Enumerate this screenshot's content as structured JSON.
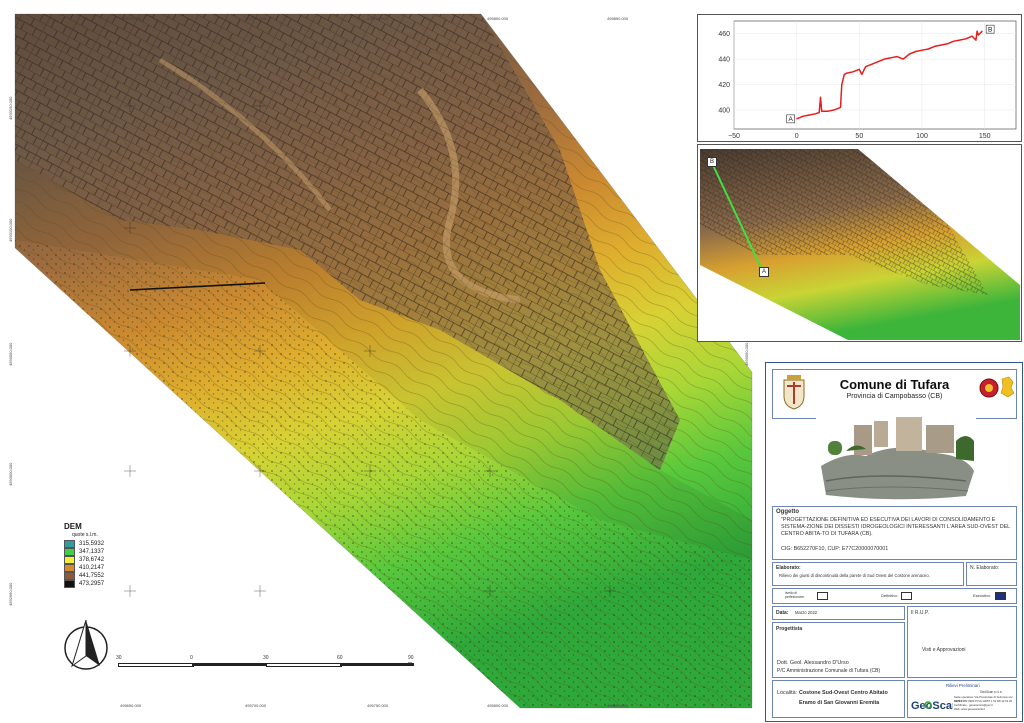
{
  "map": {
    "coords_top": [
      "495650.000",
      "495700.000",
      "495750.000",
      "495800.000",
      "495850.000"
    ],
    "coords_bottom": [
      "495650.000",
      "495700.000",
      "495750.000",
      "495800.000",
      "495850.000"
    ],
    "coords_left": [
      "4593150.000",
      "4593100.000",
      "4593050.000",
      "4593000.000",
      "4592950.000"
    ],
    "coords_right_inner": [
      "4593050.000"
    ],
    "scale_labels": [
      "30",
      "0",
      "30",
      "60",
      "90 m"
    ]
  },
  "legend": {
    "title": "DEM",
    "subtitle": "quote s.l.m.",
    "items": [
      {
        "label": "315,5932",
        "color": "#2f9e9e"
      },
      {
        "label": "347,1337",
        "color": "#3fd13f"
      },
      {
        "label": "378,6742",
        "color": "#f2ee3a"
      },
      {
        "label": "410,2147",
        "color": "#d98a2c"
      },
      {
        "label": "441,7552",
        "color": "#8a5a3a"
      },
      {
        "label": "473,2957",
        "color": "#111111"
      }
    ]
  },
  "profile": {
    "y_ticks": [
      "460",
      "440",
      "420",
      "400"
    ],
    "x_ticks": [
      "−50",
      "0",
      "50",
      "100",
      "150"
    ],
    "start_label": "A",
    "end_label": "B"
  },
  "chart_data": {
    "type": "line",
    "title": "",
    "xlabel": "",
    "ylabel": "",
    "xlim": [
      -50,
      175
    ],
    "ylim": [
      385,
      470
    ],
    "series": [
      {
        "x": [
          0,
          5,
          10,
          15,
          18,
          19,
          20,
          22,
          25,
          30,
          35,
          36,
          38,
          40,
          45,
          50,
          52,
          55,
          60,
          65,
          70,
          75,
          80,
          85,
          90,
          95,
          100,
          105,
          110,
          115,
          120,
          125,
          130,
          135,
          140,
          143,
          144,
          145,
          148
        ],
        "y": [
          393,
          395,
          396,
          397,
          398,
          410,
          399,
          399,
          399,
          400,
          402,
          420,
          428,
          429,
          430,
          432,
          428,
          434,
          436,
          438,
          440,
          441,
          442,
          440,
          444,
          446,
          447,
          448,
          450,
          451,
          452,
          454,
          455,
          456,
          458,
          455,
          462,
          459,
          462
        ]
      }
    ]
  },
  "inset": {
    "start_label": "A",
    "end_label": "B"
  },
  "cartiglio": {
    "comune": "Comune di Tufara",
    "provincia": "Provincia di Campobasso (CB)",
    "oggetto_label": "Oggetto",
    "oggetto_text": "\"PROGETTAZIONE DEFINITIVA ED ESECUTIVA DEI LAVORI DI CONSOLIDAMENTO E SISTEMA-ZIONE DEI DISSESTI IDROGEOLOGICI INTERESSANTI L'AREA SUD-OVEST DEL CENTRO ABITA-TO DI TUFARA (CB).",
    "cig_cup": "CIG: B652270F10, CUP: E77C20000070001",
    "elaborato_label": "Elaborato:",
    "elaborato_text": "Rilievo dei giunti di discontinuità della parete di  Sud Ovest del Costone arenaceo.",
    "n_elaborato_label": "N. Elaborato:",
    "livello_label": "livello di\nperfezionam.",
    "definitivo_label": "Definitivo",
    "esecutivo_label": "Esecutivo",
    "data_label": "Data:",
    "data_value": "Marzo 2022",
    "rup_label": "Il R.U.P.",
    "progettista_label": "Progettista",
    "visti_label": "Visti e Approvazioni",
    "progettista_name": "Dott. Geol. Alessandro D'Urso",
    "progettista_role": "P/C Amministrazione Comunale di Tufara (CB)",
    "localita_label": "Località:",
    "localita_value": "Costone Sud-Ovest Centro Abitato",
    "localita_value2": "Eramo di San Giovanni Eremita",
    "rilievi_label": "Rilievi Preliminari",
    "company": "GeoScan",
    "company_small": "GeoScan s.r.l.s.",
    "company_line1": "Sede operativa: Via Provinciale di Sulmona snc 81056",
    "company_line2": "0372 ZMM 0900 P.IVA 10257 1 51 E8 12 61 20",
    "company_line3": "Certificato - geoscansrs@pec.it",
    "company_line4": "Web: www.geoscansrls.it"
  }
}
